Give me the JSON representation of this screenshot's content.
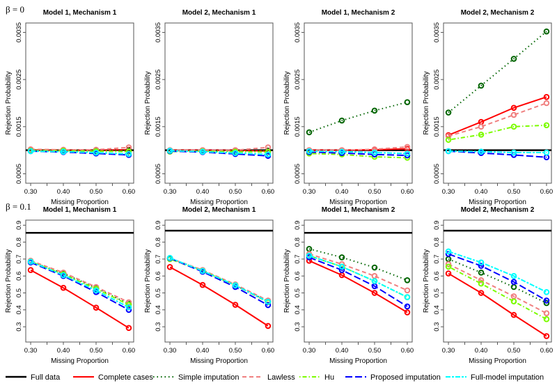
{
  "chart_data": {
    "type": "line",
    "x": [
      0.3,
      0.4,
      0.5,
      0.6
    ],
    "x_tick_labels": [
      "0.30",
      "0.40",
      "0.50",
      "0.60"
    ],
    "xlabel": "Missing Proportion",
    "ylabel": "Rejection Probability",
    "legend_position": "bottom",
    "series_styles": [
      {
        "name": "Full data",
        "color": "#000000",
        "dash": "solid"
      },
      {
        "name": "Complete cases",
        "color": "#FF0000",
        "dash": "solid"
      },
      {
        "name": "Simple imputation",
        "color": "#006400",
        "dash": "dotted"
      },
      {
        "name": "Lawless",
        "color": "#F08080",
        "dash": "dashed"
      },
      {
        "name": "Hu",
        "color": "#7CFC00",
        "dash": "dotdash"
      },
      {
        "name": "Proposed imputation",
        "color": "#0000FF",
        "dash": "longdash"
      },
      {
        "name": "Full-model imputation",
        "color": "#00FFFF",
        "dash": "twodash"
      }
    ],
    "rows": [
      {
        "label": "β = 0",
        "ylim": [
          0.0003,
          0.0037
        ],
        "y_ticks": [
          0.0005,
          0.0015,
          0.0025,
          0.0035
        ],
        "y_tick_labels": [
          "0.0005",
          "0.0015",
          "0.0025",
          "0.0035"
        ],
        "panels": [
          {
            "title": "Model 1, Mechanism 1",
            "series": [
              {
                "name": "Full data",
                "values": [
                  0.001,
                  0.001,
                  0.001,
                  0.001
                ]
              },
              {
                "name": "Complete cases",
                "values": [
                  0.001,
                  0.001,
                  0.001,
                  0.00101
                ]
              },
              {
                "name": "Simple imputation",
                "values": [
                  0.001,
                  0.001,
                  0.001,
                  0.001
                ]
              },
              {
                "name": "Lawless",
                "values": [
                  0.00102,
                  0.00101,
                  0.00101,
                  0.00106
                ]
              },
              {
                "name": "Hu",
                "values": [
                  0.00099,
                  0.00099,
                  0.00098,
                  0.00097
                ]
              },
              {
                "name": "Proposed imputation",
                "values": [
                  0.00098,
                  0.00096,
                  0.00093,
                  0.0009
                ]
              },
              {
                "name": "Full-model imputation",
                "values": [
                  0.00098,
                  0.00097,
                  0.00095,
                  0.00092
                ]
              }
            ]
          },
          {
            "title": "Model 2, Mechanism 1",
            "series": [
              {
                "name": "Full data",
                "values": [
                  0.001,
                  0.001,
                  0.001,
                  0.001
                ]
              },
              {
                "name": "Complete cases",
                "values": [
                  0.001,
                  0.001,
                  0.001,
                  0.00098
                ]
              },
              {
                "name": "Simple imputation",
                "values": [
                  0.00099,
                  0.00099,
                  0.00099,
                  0.00099
                ]
              },
              {
                "name": "Lawless",
                "values": [
                  0.001,
                  0.001,
                  0.001,
                  0.00106
                ]
              },
              {
                "name": "Hu",
                "values": [
                  0.00097,
                  0.00098,
                  0.00097,
                  0.00096
                ]
              },
              {
                "name": "Proposed imputation",
                "values": [
                  0.00098,
                  0.00096,
                  0.00092,
                  0.00088
                ]
              },
              {
                "name": "Full-model imputation",
                "values": [
                  0.00099,
                  0.00097,
                  0.00094,
                  0.00091
                ]
              }
            ]
          },
          {
            "title": "Model 1, Mechanism 2",
            "series": [
              {
                "name": "Full data",
                "values": [
                  0.001,
                  0.001,
                  0.001,
                  0.001
                ]
              },
              {
                "name": "Complete cases",
                "values": [
                  0.001,
                  0.001,
                  0.00101,
                  0.00103
                ]
              },
              {
                "name": "Simple imputation",
                "values": [
                  0.00138,
                  0.00163,
                  0.00184,
                  0.00202
                ]
              },
              {
                "name": "Lawless",
                "values": [
                  0.001,
                  0.001,
                  0.00102,
                  0.00107
                ]
              },
              {
                "name": "Hu",
                "values": [
                  0.00093,
                  0.00091,
                  0.00086,
                  0.00084
                ]
              },
              {
                "name": "Proposed imputation",
                "values": [
                  0.00096,
                  0.00094,
                  0.00091,
                  0.00089
                ]
              },
              {
                "name": "Full-model imputation",
                "values": [
                  0.00098,
                  0.00097,
                  0.00095,
                  0.00093
                ]
              }
            ]
          },
          {
            "title": "Model 2, Mechanism 2",
            "series": [
              {
                "name": "Full data",
                "values": [
                  0.001,
                  0.001,
                  0.001,
                  0.001
                ]
              },
              {
                "name": "Complete cases",
                "values": [
                  0.00132,
                  0.0016,
                  0.0019,
                  0.00213
                ]
              },
              {
                "name": "Simple imputation",
                "values": [
                  0.0018,
                  0.00237,
                  0.00294,
                  0.00352
                ]
              },
              {
                "name": "Lawless",
                "values": [
                  0.0013,
                  0.0015,
                  0.00175,
                  0.002
                ]
              },
              {
                "name": "Hu",
                "values": [
                  0.00122,
                  0.00133,
                  0.0015,
                  0.00153
                ]
              },
              {
                "name": "Proposed imputation",
                "values": [
                  0.00098,
                  0.00094,
                  0.0009,
                  0.00085
                ]
              },
              {
                "name": "Full-model imputation",
                "values": [
                  0.00098,
                  0.00097,
                  0.00095,
                  0.00095
                ]
              }
            ]
          }
        ]
      },
      {
        "label": "β = 0.1",
        "ylim": [
          0.21,
          0.93
        ],
        "y_ticks": [
          0.3,
          0.4,
          0.5,
          0.6,
          0.7,
          0.8,
          0.9
        ],
        "y_tick_labels": [
          "0.3",
          "0.4",
          "0.5",
          "0.6",
          "0.7",
          "0.8",
          "0.9"
        ],
        "panels": [
          {
            "title": "Model 1, Mechanism 1",
            "series": [
              {
                "name": "Full data",
                "values": [
                  0.855,
                  0.855,
                  0.855,
                  0.855
                ]
              },
              {
                "name": "Complete cases",
                "values": [
                  0.635,
                  0.53,
                  0.413,
                  0.293
                ]
              },
              {
                "name": "Simple imputation",
                "values": [
                  0.685,
                  0.615,
                  0.53,
                  0.435
                ]
              },
              {
                "name": "Lawless",
                "values": [
                  0.69,
                  0.62,
                  0.535,
                  0.445
                ]
              },
              {
                "name": "Hu",
                "values": [
                  0.685,
                  0.61,
                  0.525,
                  0.43
                ]
              },
              {
                "name": "Proposed imputation",
                "values": [
                  0.68,
                  0.6,
                  0.505,
                  0.4
                ]
              },
              {
                "name": "Full-model imputation",
                "values": [
                  0.685,
                  0.605,
                  0.515,
                  0.415
                ]
              }
            ]
          },
          {
            "title": "Model 2, Mechanism 1",
            "series": [
              {
                "name": "Full data",
                "values": [
                  0.868,
                  0.868,
                  0.868,
                  0.868
                ]
              },
              {
                "name": "Complete cases",
                "values": [
                  0.653,
                  0.547,
                  0.43,
                  0.305
                ]
              },
              {
                "name": "Simple imputation",
                "values": [
                  0.705,
                  0.632,
                  0.545,
                  0.45
                ]
              },
              {
                "name": "Lawless",
                "values": [
                  0.705,
                  0.635,
                  0.55,
                  0.455
                ]
              },
              {
                "name": "Hu",
                "values": [
                  0.7,
                  0.63,
                  0.545,
                  0.445
                ]
              },
              {
                "name": "Proposed imputation",
                "values": [
                  0.705,
                  0.625,
                  0.535,
                  0.428
                ]
              },
              {
                "name": "Full-model imputation",
                "values": [
                  0.707,
                  0.63,
                  0.545,
                  0.448
                ]
              }
            ]
          },
          {
            "title": "Model 1, Mechanism 2",
            "series": [
              {
                "name": "Full data",
                "values": [
                  0.855,
                  0.855,
                  0.855,
                  0.855
                ]
              },
              {
                "name": "Complete cases",
                "values": [
                  0.69,
                  0.605,
                  0.5,
                  0.385
                ]
              },
              {
                "name": "Simple imputation",
                "values": [
                  0.76,
                  0.71,
                  0.65,
                  0.575
                ]
              },
              {
                "name": "Lawless",
                "values": [
                  0.73,
                  0.67,
                  0.6,
                  0.515
                ]
              },
              {
                "name": "Hu",
                "values": [
                  0.72,
                  0.655,
                  0.57,
                  0.475
                ]
              },
              {
                "name": "Proposed imputation",
                "values": [
                  0.71,
                  0.635,
                  0.54,
                  0.42
                ]
              },
              {
                "name": "Full-model imputation",
                "values": [
                  0.72,
                  0.655,
                  0.57,
                  0.475
                ]
              }
            ]
          },
          {
            "title": "Model 2, Mechanism 2",
            "series": [
              {
                "name": "Full data",
                "values": [
                  0.868,
                  0.868,
                  0.868,
                  0.868
                ]
              },
              {
                "name": "Complete cases",
                "values": [
                  0.615,
                  0.5,
                  0.37,
                  0.245
                ]
              },
              {
                "name": "Simple imputation",
                "values": [
                  0.7,
                  0.62,
                  0.535,
                  0.44
                ]
              },
              {
                "name": "Lawless",
                "values": [
                  0.67,
                  0.575,
                  0.48,
                  0.38
                ]
              },
              {
                "name": "Hu",
                "values": [
                  0.655,
                  0.555,
                  0.45,
                  0.345
                ]
              },
              {
                "name": "Proposed imputation",
                "values": [
                  0.73,
                  0.66,
                  0.565,
                  0.455
                ]
              },
              {
                "name": "Full-model imputation",
                "values": [
                  0.745,
                  0.68,
                  0.6,
                  0.505
                ]
              }
            ]
          }
        ]
      }
    ]
  }
}
